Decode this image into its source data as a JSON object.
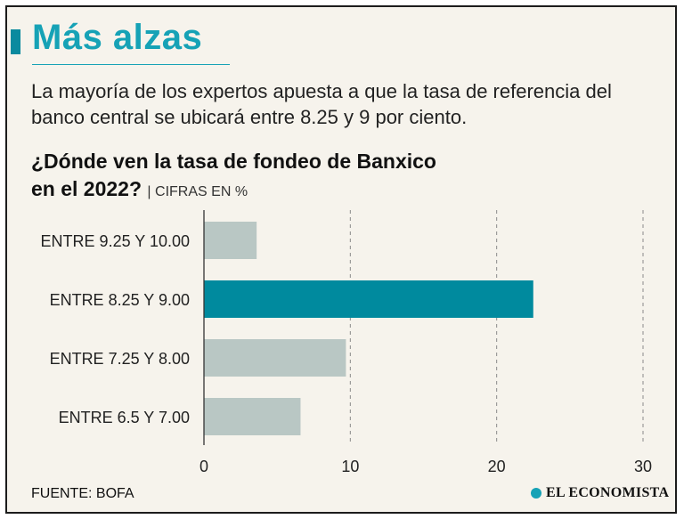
{
  "header": {
    "title": "Más alzas",
    "subtitle": "La mayoría de los expertos apuesta a que la tasa de referencia del banco central se ubicará entre 8.25 y 9 por ciento."
  },
  "chart_heading": {
    "line1": "¿Dónde ven la tasa de fondeo de Banxico",
    "line2": "en el 2022?",
    "units": "| CIFRAS EN %"
  },
  "chart_data": {
    "type": "bar",
    "orientation": "horizontal",
    "categories": [
      "ENTRE 9.25 Y 10.00",
      "ENTRE 8.25 Y 9.00",
      "ENTRE 7.25 Y 8.00",
      "ENTRE 6.5 Y 7.00"
    ],
    "values": [
      3.6,
      22.5,
      9.7,
      6.6
    ],
    "highlight_index": 1,
    "xlim": [
      0,
      30
    ],
    "xticks": [
      0,
      10,
      20,
      30
    ],
    "grid": "vertical dashed",
    "colors": {
      "bar": "#b9c7c4",
      "highlight": "#008a9e"
    }
  },
  "footer": {
    "source": "FUENTE: BOFA",
    "brand": "EL ECONOMISTA"
  },
  "colors": {
    "accent": "#16a2b6",
    "background": "#f6f3ec"
  }
}
